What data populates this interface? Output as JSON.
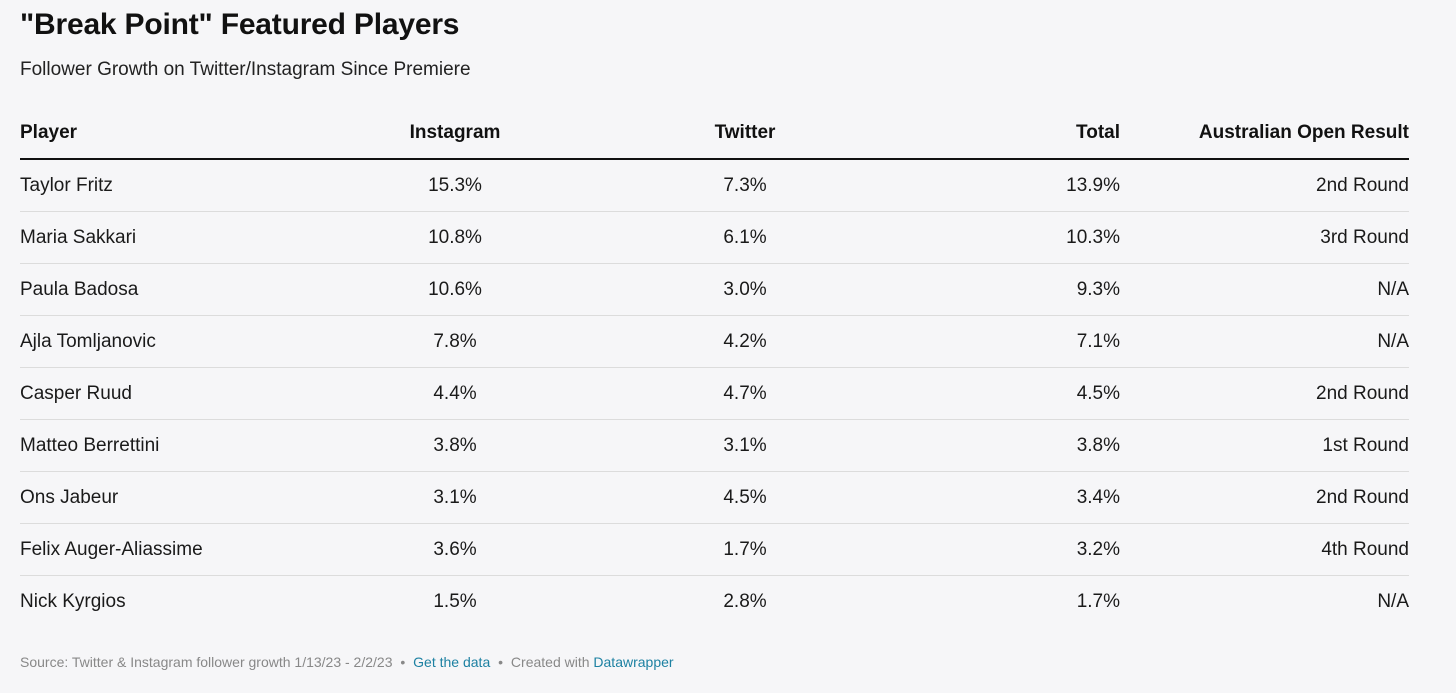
{
  "chart_data": {
    "type": "table",
    "title": "\"Break Point\" Featured Players",
    "subtitle": "Follower Growth on Twitter/Instagram Since Premiere",
    "columns": [
      "Player",
      "Instagram",
      "Twitter",
      "Total",
      "Australian Open Result"
    ],
    "rows": [
      [
        "Taylor Fritz",
        "15.3%",
        "7.3%",
        "13.9%",
        "2nd Round"
      ],
      [
        "Maria Sakkari",
        "10.8%",
        "6.1%",
        "10.3%",
        "3rd Round"
      ],
      [
        "Paula Badosa",
        "10.6%",
        "3.0%",
        "9.3%",
        "N/A"
      ],
      [
        "Ajla Tomljanovic",
        "7.8%",
        "4.2%",
        "7.1%",
        "N/A"
      ],
      [
        "Casper Ruud",
        "4.4%",
        "4.7%",
        "4.5%",
        "2nd Round"
      ],
      [
        "Matteo Berrettini",
        "3.8%",
        "3.1%",
        "3.8%",
        "1st Round"
      ],
      [
        "Ons Jabeur",
        "3.1%",
        "4.5%",
        "3.4%",
        "2nd Round"
      ],
      [
        "Felix Auger-Aliassime",
        "3.6%",
        "1.7%",
        "3.2%",
        "4th Round"
      ],
      [
        "Nick Kyrgios",
        "1.5%",
        "2.8%",
        "1.7%",
        "N/A"
      ]
    ],
    "footer": {
      "source": "Source: Twitter & Instagram follower growth 1/13/23 - 2/2/23",
      "separator": "•",
      "get_data_label": "Get the data",
      "created_with": "Created with",
      "tool_name": "Datawrapper"
    },
    "colors": {
      "background": "#f6f6f8",
      "link": "#1d81a2",
      "header_rule": "#111111",
      "row_rule": "#dcdcdc"
    }
  }
}
